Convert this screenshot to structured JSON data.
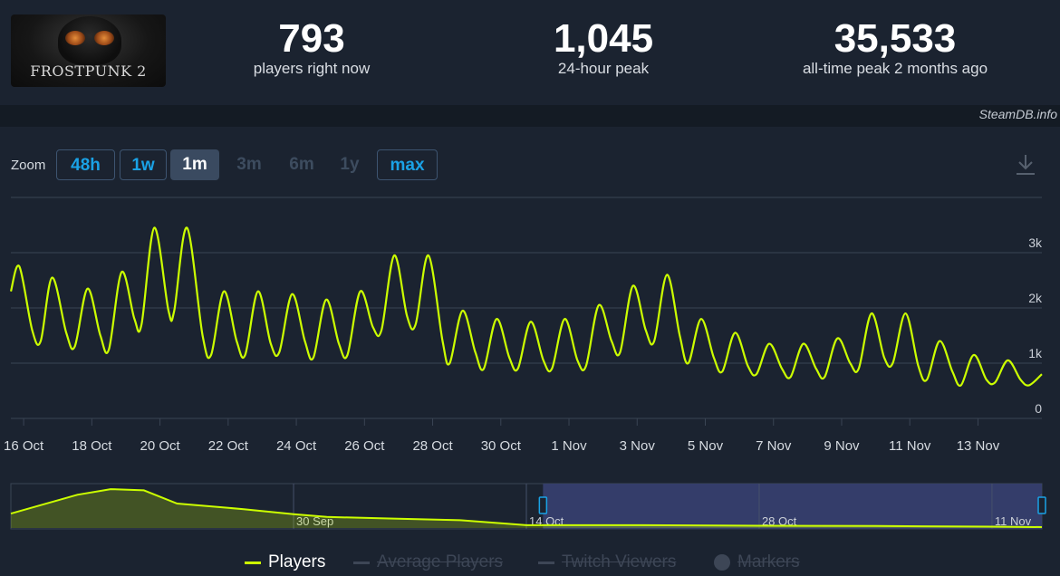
{
  "logo": {
    "text": "FROSTPUNK 2"
  },
  "stats": [
    {
      "value": "793",
      "label": "players right now"
    },
    {
      "value": "1,045",
      "label": "24-hour peak"
    },
    {
      "value": "35,533",
      "label": "all-time peak 2 months ago"
    }
  ],
  "watermark": "SteamDB.info",
  "zoom": {
    "label": "Zoom",
    "buttons": [
      {
        "label": "48h",
        "state": "enabled"
      },
      {
        "label": "1w",
        "state": "enabled"
      },
      {
        "label": "1m",
        "state": "selected"
      },
      {
        "label": "3m",
        "state": "disabled"
      },
      {
        "label": "6m",
        "state": "disabled"
      },
      {
        "label": "1y",
        "state": "disabled"
      },
      {
        "label": "max",
        "state": "enabled"
      }
    ]
  },
  "legend": [
    {
      "label": "Players",
      "active": true
    },
    {
      "label": "Average Players",
      "active": false
    },
    {
      "label": "Twitch Viewers",
      "active": false
    },
    {
      "label": "Markers",
      "active": false
    }
  ],
  "colors": {
    "accent": "#1aa2e6",
    "series": "#ccff00",
    "grid": "#3a4454",
    "background": "#1b2330"
  },
  "icons": {
    "download": "download-icon"
  },
  "chart_data": [
    {
      "type": "line",
      "title": "",
      "xlabel": "",
      "ylabel": "",
      "ylim": [
        0,
        4000
      ],
      "yticks": [
        0,
        1000,
        2000,
        3000
      ],
      "ytick_labels": [
        "0",
        "1k",
        "2k",
        "3k"
      ],
      "x_start": "15 Oct 2024 15:00",
      "x_end": "14 Nov 2024 21:00",
      "xticks": [
        "2024-10-16",
        "2024-10-18",
        "2024-10-20",
        "2024-10-22",
        "2024-10-24",
        "2024-10-26",
        "2024-10-28",
        "2024-10-30",
        "2024-11-01",
        "2024-11-03",
        "2024-11-05",
        "2024-11-07",
        "2024-11-09",
        "2024-11-11",
        "2024-11-13"
      ],
      "xtick_labels": [
        "16 Oct",
        "18 Oct",
        "20 Oct",
        "22 Oct",
        "24 Oct",
        "26 Oct",
        "28 Oct",
        "30 Oct",
        "1 Nov",
        "3 Nov",
        "5 Nov",
        "7 Nov",
        "9 Nov",
        "11 Nov",
        "13 Nov"
      ],
      "grid": true,
      "series": [
        {
          "name": "Players",
          "color": "#ccff00",
          "points": [
            [
              "2024-10-15 15:00",
              2300
            ],
            [
              "2024-10-15 21:00",
              2750
            ],
            [
              "2024-10-16 06:00",
              1600
            ],
            [
              "2024-10-16 12:00",
              1400
            ],
            [
              "2024-10-16 20:00",
              2550
            ],
            [
              "2024-10-17 06:00",
              1550
            ],
            [
              "2024-10-17 12:00",
              1300
            ],
            [
              "2024-10-17 21:00",
              2350
            ],
            [
              "2024-10-18 06:00",
              1500
            ],
            [
              "2024-10-18 12:00",
              1250
            ],
            [
              "2024-10-18 21:00",
              2650
            ],
            [
              "2024-10-19 06:00",
              1800
            ],
            [
              "2024-10-19 11:00",
              1700
            ],
            [
              "2024-10-19 20:00",
              3450
            ],
            [
              "2024-10-20 06:00",
              1950
            ],
            [
              "2024-10-20 10:00",
              1950
            ],
            [
              "2024-10-20 19:00",
              3450
            ],
            [
              "2024-10-21 06:00",
              1500
            ],
            [
              "2024-10-21 12:00",
              1150
            ],
            [
              "2024-10-21 21:00",
              2300
            ],
            [
              "2024-10-22 06:00",
              1400
            ],
            [
              "2024-10-22 12:00",
              1150
            ],
            [
              "2024-10-22 21:00",
              2300
            ],
            [
              "2024-10-23 06:00",
              1350
            ],
            [
              "2024-10-23 12:00",
              1200
            ],
            [
              "2024-10-23 21:00",
              2250
            ],
            [
              "2024-10-24 06:00",
              1400
            ],
            [
              "2024-10-24 12:00",
              1100
            ],
            [
              "2024-10-24 21:00",
              2150
            ],
            [
              "2024-10-25 06:00",
              1350
            ],
            [
              "2024-10-25 12:00",
              1150
            ],
            [
              "2024-10-25 21:00",
              2300
            ],
            [
              "2024-10-26 06:00",
              1650
            ],
            [
              "2024-10-26 12:00",
              1600
            ],
            [
              "2024-10-26 21:00",
              2950
            ],
            [
              "2024-10-27 06:00",
              1850
            ],
            [
              "2024-10-27 12:00",
              1700
            ],
            [
              "2024-10-27 21:00",
              2950
            ],
            [
              "2024-10-28 07:00",
              1400
            ],
            [
              "2024-10-28 12:00",
              1000
            ],
            [
              "2024-10-28 21:00",
              1950
            ],
            [
              "2024-10-29 06:00",
              1200
            ],
            [
              "2024-10-29 12:00",
              900
            ],
            [
              "2024-10-29 21:00",
              1800
            ],
            [
              "2024-10-30 06:00",
              1100
            ],
            [
              "2024-10-30 12:00",
              900
            ],
            [
              "2024-10-30 21:00",
              1750
            ],
            [
              "2024-10-31 06:00",
              1050
            ],
            [
              "2024-10-31 12:00",
              900
            ],
            [
              "2024-10-31 21:00",
              1800
            ],
            [
              "2024-11-01 06:00",
              1050
            ],
            [
              "2024-11-01 12:00",
              950
            ],
            [
              "2024-11-01 21:00",
              2050
            ],
            [
              "2024-11-02 06:00",
              1400
            ],
            [
              "2024-11-02 12:00",
              1200
            ],
            [
              "2024-11-02 21:00",
              2400
            ],
            [
              "2024-11-03 06:00",
              1600
            ],
            [
              "2024-11-03 12:00",
              1400
            ],
            [
              "2024-11-03 21:00",
              2600
            ],
            [
              "2024-11-04 06:00",
              1500
            ],
            [
              "2024-11-04 12:00",
              1000
            ],
            [
              "2024-11-04 21:00",
              1800
            ],
            [
              "2024-11-05 06:00",
              1100
            ],
            [
              "2024-11-05 12:00",
              850
            ],
            [
              "2024-11-05 21:00",
              1550
            ],
            [
              "2024-11-06 06:00",
              950
            ],
            [
              "2024-11-06 12:00",
              800
            ],
            [
              "2024-11-06 21:00",
              1350
            ],
            [
              "2024-11-07 06:00",
              900
            ],
            [
              "2024-11-07 12:00",
              750
            ],
            [
              "2024-11-07 21:00",
              1350
            ],
            [
              "2024-11-08 06:00",
              900
            ],
            [
              "2024-11-08 12:00",
              750
            ],
            [
              "2024-11-08 21:00",
              1450
            ],
            [
              "2024-11-09 06:00",
              1000
            ],
            [
              "2024-11-09 12:00",
              900
            ],
            [
              "2024-11-09 21:00",
              1900
            ],
            [
              "2024-11-10 06:00",
              1100
            ],
            [
              "2024-11-10 12:00",
              1000
            ],
            [
              "2024-11-10 21:00",
              1900
            ],
            [
              "2024-11-11 06:00",
              950
            ],
            [
              "2024-11-11 12:00",
              700
            ],
            [
              "2024-11-11 21:00",
              1400
            ],
            [
              "2024-11-12 06:00",
              850
            ],
            [
              "2024-11-12 12:00",
              600
            ],
            [
              "2024-11-12 21:00",
              1150
            ],
            [
              "2024-11-13 06:00",
              700
            ],
            [
              "2024-11-13 12:00",
              650
            ],
            [
              "2024-11-13 21:00",
              1050
            ],
            [
              "2024-11-14 06:00",
              700
            ],
            [
              "2024-11-14 12:00",
              600
            ],
            [
              "2024-11-14 21:00",
              800
            ]
          ]
        }
      ]
    },
    {
      "type": "area",
      "title": "",
      "xlabel": "",
      "ylabel": "",
      "ylim": [
        0,
        40000
      ],
      "x_start": "13 Sep 2024",
      "x_end": "14 Nov 2024",
      "xticks": [
        "2024-09-30",
        "2024-10-14",
        "2024-10-28",
        "2024-11-11"
      ],
      "xtick_labels": [
        "30 Sep",
        "14 Oct",
        "28 Oct",
        "11 Nov"
      ],
      "selected_range": [
        "2024-10-15",
        "2024-11-14"
      ],
      "series": [
        {
          "color": "#ccff00",
          "points": [
            [
              "2024-09-13",
              13000
            ],
            [
              "2024-09-17",
              30000
            ],
            [
              "2024-09-19",
              35000
            ],
            [
              "2024-09-21",
              34000
            ],
            [
              "2024-09-23",
              22000
            ],
            [
              "2024-09-27",
              17000
            ],
            [
              "2024-09-30",
              12500
            ],
            [
              "2024-10-02",
              10000
            ],
            [
              "2024-10-06",
              8500
            ],
            [
              "2024-10-10",
              7000
            ],
            [
              "2024-10-14",
              2500
            ],
            [
              "2024-10-21",
              2500
            ],
            [
              "2024-10-28",
              2000
            ],
            [
              "2024-11-04",
              1800
            ],
            [
              "2024-11-11",
              1200
            ],
            [
              "2024-11-14",
              800
            ]
          ]
        }
      ]
    }
  ]
}
